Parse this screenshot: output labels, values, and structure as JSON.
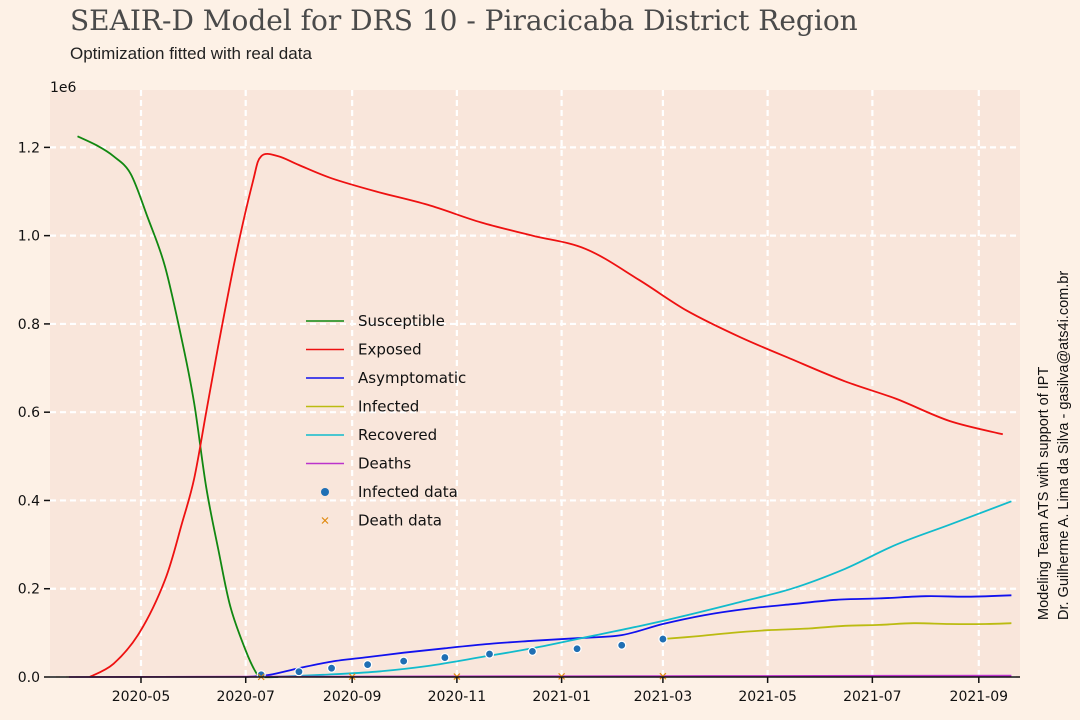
{
  "title": "SEAIR-D Model for DRS 10 - Piracicaba District Region",
  "subtitle": "Optimization fitted with real data",
  "credit_line_1": "Modeling Team ATS with support of IPT",
  "credit_line_2": "Dr. Guilherme A. Lima da Silva - gasilva@ats4i.com.br",
  "colors": {
    "background": "#fdf1e6",
    "plot_area": "#f9e6db",
    "grid": "#ffffff"
  },
  "chart_data": {
    "type": "line",
    "title": "SEAIR-D Model for DRS 10 - Piracicaba District Region",
    "subtitle": "Optimization fitted with real data",
    "xlabel": "",
    "ylabel": "",
    "y_scale_label": "1e6",
    "xlim": [
      "2020-03-09",
      "2021-09-25"
    ],
    "ylim": [
      0,
      1.33
    ],
    "grid": true,
    "legend_position": "center-left",
    "x_ticks": [
      "2020-05",
      "2020-07",
      "2020-09",
      "2020-11",
      "2021-01",
      "2021-03",
      "2021-05",
      "2021-07",
      "2021-09"
    ],
    "x_tick_dates": [
      "2020-05-01",
      "2020-07-01",
      "2020-09-01",
      "2020-11-01",
      "2021-01-01",
      "2021-03-01",
      "2021-05-01",
      "2021-07-01",
      "2021-09-01"
    ],
    "y_ticks": [
      "0.0",
      "0.2",
      "0.4",
      "0.6",
      "0.8",
      "1.0",
      "1.2"
    ],
    "y_tick_values": [
      0,
      0.2,
      0.4,
      0.6,
      0.8,
      1.0,
      1.2
    ],
    "series": [
      {
        "name": "Susceptible",
        "kind": "line",
        "color": "#118811",
        "x": [
          "2020-03-25",
          "2020-04-05",
          "2020-04-15",
          "2020-04-25",
          "2020-05-05",
          "2020-05-15",
          "2020-05-25",
          "2020-06-01",
          "2020-06-08",
          "2020-06-15",
          "2020-06-22",
          "2020-07-01",
          "2020-07-07",
          "2020-07-10",
          "2020-07-20"
        ],
        "y": [
          1.225,
          1.205,
          1.18,
          1.14,
          1.04,
          0.93,
          0.76,
          0.62,
          0.43,
          0.29,
          0.16,
          0.06,
          0.01,
          0.0,
          0.0
        ]
      },
      {
        "name": "Exposed",
        "kind": "line",
        "color": "#ee1111",
        "x": [
          "2020-04-01",
          "2020-04-15",
          "2020-04-30",
          "2020-05-15",
          "2020-05-25",
          "2020-06-01",
          "2020-06-08",
          "2020-06-15",
          "2020-06-25",
          "2020-07-05",
          "2020-07-10",
          "2020-07-20",
          "2020-08-01",
          "2020-08-20",
          "2020-09-15",
          "2020-10-15",
          "2020-11-15",
          "2020-12-15",
          "2021-01-15",
          "2021-02-15",
          "2021-03-15",
          "2021-04-15",
          "2021-05-15",
          "2021-06-15",
          "2021-07-15",
          "2021-08-15",
          "2021-09-15"
        ],
        "y": [
          0.0,
          0.03,
          0.1,
          0.22,
          0.35,
          0.45,
          0.6,
          0.75,
          0.95,
          1.12,
          1.18,
          1.18,
          1.16,
          1.13,
          1.1,
          1.07,
          1.03,
          1.0,
          0.97,
          0.9,
          0.83,
          0.77,
          0.72,
          0.67,
          0.63,
          0.58,
          0.55
        ]
      },
      {
        "name": "Asymptomatic",
        "kind": "line",
        "color": "#1111ee",
        "x": [
          "2020-07-01",
          "2020-07-15",
          "2020-08-01",
          "2020-08-20",
          "2020-09-10",
          "2020-10-01",
          "2020-10-25",
          "2020-11-20",
          "2020-12-15",
          "2021-01-10",
          "2021-02-05",
          "2021-03-01",
          "2021-03-25",
          "2021-04-20",
          "2021-05-15",
          "2021-06-10",
          "2021-07-05",
          "2021-08-01",
          "2021-08-25",
          "2021-09-20"
        ],
        "y": [
          0.0,
          0.005,
          0.02,
          0.035,
          0.045,
          0.055,
          0.065,
          0.075,
          0.082,
          0.088,
          0.095,
          0.12,
          0.14,
          0.155,
          0.165,
          0.175,
          0.178,
          0.183,
          0.182,
          0.185
        ]
      },
      {
        "name": "Infected",
        "kind": "line",
        "color": "#bbbb11",
        "x": [
          "2021-03-01",
          "2021-03-20",
          "2021-04-10",
          "2021-05-01",
          "2021-05-25",
          "2021-06-15",
          "2021-07-05",
          "2021-07-25",
          "2021-08-15",
          "2021-09-05",
          "2021-09-20"
        ],
        "y": [
          0.086,
          0.092,
          0.1,
          0.106,
          0.11,
          0.116,
          0.118,
          0.122,
          0.12,
          0.12,
          0.122
        ]
      },
      {
        "name": "Recovered",
        "kind": "line",
        "color": "#11bbcc",
        "x": [
          "2020-07-15",
          "2020-08-15",
          "2020-09-15",
          "2020-10-15",
          "2020-11-15",
          "2020-12-15",
          "2021-01-15",
          "2021-02-15",
          "2021-03-15",
          "2021-04-15",
          "2021-05-15",
          "2021-06-15",
          "2021-07-15",
          "2021-08-15",
          "2021-09-20"
        ],
        "y": [
          0.0,
          0.005,
          0.012,
          0.025,
          0.045,
          0.065,
          0.09,
          0.115,
          0.14,
          0.17,
          0.2,
          0.245,
          0.3,
          0.345,
          0.398
        ]
      },
      {
        "name": "Deaths",
        "kind": "line",
        "color": "#bb33cc",
        "x": [
          "2020-03-20",
          "2020-06-01",
          "2020-09-01",
          "2020-12-01",
          "2021-03-01",
          "2021-06-01",
          "2021-09-20"
        ],
        "y": [
          0.0,
          0.0005,
          0.001,
          0.0015,
          0.002,
          0.0025,
          0.003
        ]
      },
      {
        "name": "Infected data",
        "kind": "scatter",
        "marker": "circle",
        "color": "#1f6fb4",
        "x": [
          "2020-07-10",
          "2020-08-01",
          "2020-08-20",
          "2020-09-10",
          "2020-10-01",
          "2020-10-25",
          "2020-11-20",
          "2020-12-15",
          "2021-01-10",
          "2021-02-05",
          "2021-03-01"
        ],
        "y": [
          0.005,
          0.012,
          0.02,
          0.028,
          0.036,
          0.044,
          0.052,
          0.058,
          0.064,
          0.072,
          0.086
        ]
      },
      {
        "name": "Death data",
        "kind": "scatter",
        "marker": "x",
        "color": "#e08a10",
        "x": [
          "2020-07-10",
          "2020-09-01",
          "2020-11-01",
          "2021-01-01",
          "2021-03-01"
        ],
        "y": [
          0.0003,
          0.0007,
          0.001,
          0.0014,
          0.0018
        ]
      }
    ]
  }
}
